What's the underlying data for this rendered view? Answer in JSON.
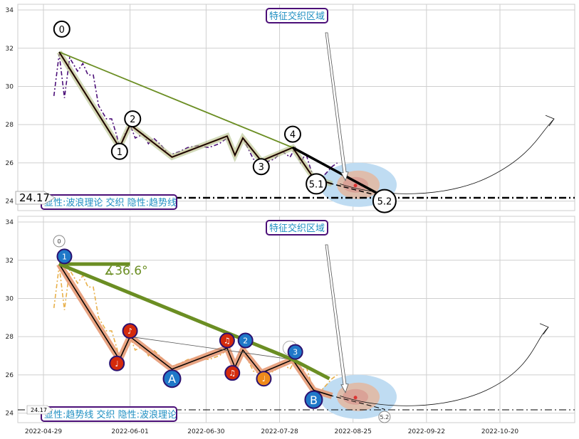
{
  "chart_data": [
    {
      "type": "line",
      "panel": "top",
      "ylim": [
        23.5,
        34.3
      ],
      "y_ticks": [
        24,
        26,
        28,
        30,
        32,
        34
      ],
      "grid": true,
      "title_box": "特征交织区域",
      "caption": "显性:波浪理论 交织 隐性:趋势线",
      "hline_label": "24.17",
      "hline_value": 24.17,
      "series": [
        {
          "style": "dashdot",
          "color": "#4b0f78",
          "points": [
            [
              "2022-05-03",
              29.5
            ],
            [
              "2022-05-05",
              31.7
            ],
            [
              "2022-05-07",
              29.4
            ],
            [
              "2022-05-09",
              31.5
            ],
            [
              "2022-05-12",
              30.8
            ],
            [
              "2022-05-14",
              31.2
            ],
            [
              "2022-05-16",
              30.6
            ],
            [
              "2022-05-18",
              30.6
            ],
            [
              "2022-05-20",
              29.0
            ],
            [
              "2022-05-23",
              28.3
            ],
            [
              "2022-05-25",
              28.3
            ],
            [
              "2022-05-27",
              27.4
            ],
            [
              "2022-05-28",
              26.8
            ],
            [
              "2022-05-30",
              27.5
            ],
            [
              "2022-06-01",
              28.0
            ],
            [
              "2022-06-03",
              27.3
            ],
            [
              "2022-06-06",
              27.5
            ],
            [
              "2022-06-08",
              27.0
            ],
            [
              "2022-06-10",
              27.3
            ],
            [
              "2022-06-13",
              26.9
            ],
            [
              "2022-06-16",
              26.4
            ],
            [
              "2022-06-20",
              26.6
            ],
            [
              "2022-06-23",
              26.8
            ],
            [
              "2022-06-27",
              26.9
            ],
            [
              "2022-07-01",
              26.8
            ],
            [
              "2022-07-05",
              27.0
            ],
            [
              "2022-07-08",
              27.3
            ],
            [
              "2022-07-11",
              26.4
            ],
            [
              "2022-07-14",
              27.3
            ],
            [
              "2022-07-18",
              26.2
            ],
            [
              "2022-07-22",
              26.0
            ],
            [
              "2022-07-26",
              26.2
            ],
            [
              "2022-07-29",
              26.6
            ],
            [
              "2022-08-01",
              26.3
            ],
            [
              "2022-08-03",
              26.8
            ],
            [
              "2022-08-05",
              26.0
            ],
            [
              "2022-08-07",
              26.5
            ],
            [
              "2022-08-09",
              25.6
            ],
            [
              "2022-08-11",
              25.0
            ],
            [
              "2022-08-13",
              25.2
            ],
            [
              "2022-08-15",
              25.5
            ],
            [
              "2022-08-17",
              25.8
            ],
            [
              "2022-08-19",
              26.0
            ]
          ]
        },
        {
          "style": "wave",
          "color": "#000000",
          "points": [
            [
              "2022-05-05",
              31.8
            ],
            [
              "2022-05-28",
              26.8
            ],
            [
              "2022-06-01",
              28.0
            ],
            [
              "2022-06-17",
              26.3
            ],
            [
              "2022-07-08",
              27.4
            ],
            [
              "2022-07-11",
              26.4
            ],
            [
              "2022-07-14",
              27.3
            ],
            [
              "2022-07-21",
              26.1
            ],
            [
              "2022-08-02",
              26.8
            ],
            [
              "2022-08-10",
              25.2
            ],
            [
              "2022-08-17",
              24.9
            ],
            [
              "2022-09-06",
              24.2
            ]
          ]
        },
        {
          "style": "trend",
          "color": "#6b8e23",
          "points": [
            [
              "2022-05-05",
              31.8
            ],
            [
              "2022-08-02",
              26.8
            ],
            [
              "2022-09-06",
              24.2
            ]
          ]
        }
      ],
      "wave_labels": [
        {
          "label": "0",
          "date": "2022-05-06",
          "value": 33.0
        },
        {
          "label": "1",
          "date": "2022-05-28",
          "value": 26.6
        },
        {
          "label": "2",
          "date": "2022-06-02",
          "value": 28.3
        },
        {
          "label": "3",
          "date": "2022-07-21",
          "value": 25.8
        },
        {
          "label": "4",
          "date": "2022-08-02",
          "value": 27.5
        },
        {
          "label": "5.1",
          "date": "2022-08-11",
          "value": 24.9
        },
        {
          "label": "5.2",
          "date": "2022-09-06",
          "value": 24.0
        }
      ]
    },
    {
      "type": "line",
      "panel": "bottom",
      "ylim": [
        23.5,
        34.3
      ],
      "y_ticks": [
        24,
        26,
        28,
        30,
        32,
        34
      ],
      "grid": true,
      "title_box": "特征交织区域",
      "caption": "显性:趋势线 交织 隐性:波浪理论",
      "hline_label": "24.17",
      "hline_value": 24.17,
      "angle_label": "∡36.6°",
      "x_ticks": [
        "2022-04-29",
        "2022-06-01",
        "2022-06-30",
        "2022-07-28",
        "2022-08-25",
        "2022-09-22",
        "2022-10-20"
      ],
      "series": [
        {
          "style": "dashdot",
          "color": "#e8b04a",
          "points": [
            [
              "2022-05-03",
              29.5
            ],
            [
              "2022-05-05",
              31.7
            ],
            [
              "2022-05-07",
              29.4
            ],
            [
              "2022-05-09",
              31.5
            ],
            [
              "2022-05-12",
              30.8
            ],
            [
              "2022-05-14",
              31.2
            ],
            [
              "2022-05-16",
              30.6
            ],
            [
              "2022-05-18",
              30.6
            ],
            [
              "2022-05-20",
              29.0
            ],
            [
              "2022-05-23",
              28.3
            ],
            [
              "2022-05-25",
              28.3
            ],
            [
              "2022-05-27",
              27.4
            ],
            [
              "2022-05-28",
              26.8
            ],
            [
              "2022-05-30",
              27.5
            ],
            [
              "2022-06-01",
              28.0
            ],
            [
              "2022-06-03",
              27.3
            ],
            [
              "2022-06-06",
              27.5
            ],
            [
              "2022-06-08",
              27.0
            ],
            [
              "2022-06-10",
              27.3
            ],
            [
              "2022-06-13",
              26.9
            ],
            [
              "2022-06-16",
              26.4
            ],
            [
              "2022-06-20",
              26.6
            ],
            [
              "2022-06-23",
              26.8
            ],
            [
              "2022-06-27",
              26.9
            ],
            [
              "2022-07-01",
              26.8
            ],
            [
              "2022-07-05",
              27.0
            ],
            [
              "2022-07-08",
              27.3
            ],
            [
              "2022-07-11",
              26.4
            ],
            [
              "2022-07-14",
              27.3
            ],
            [
              "2022-07-18",
              26.2
            ],
            [
              "2022-07-22",
              26.0
            ],
            [
              "2022-07-26",
              26.2
            ],
            [
              "2022-07-29",
              26.6
            ],
            [
              "2022-08-01",
              26.3
            ],
            [
              "2022-08-03",
              26.8
            ],
            [
              "2022-08-05",
              26.0
            ],
            [
              "2022-08-07",
              26.5
            ],
            [
              "2022-08-09",
              25.6
            ],
            [
              "2022-08-11",
              25.0
            ],
            [
              "2022-08-13",
              25.2
            ],
            [
              "2022-08-15",
              25.5
            ],
            [
              "2022-08-17",
              25.8
            ],
            [
              "2022-08-19",
              26.0
            ]
          ]
        },
        {
          "style": "wave",
          "color": "#000000",
          "points": [
            [
              "2022-05-05",
              31.8
            ],
            [
              "2022-05-28",
              26.8
            ],
            [
              "2022-06-01",
              28.0
            ],
            [
              "2022-06-17",
              26.3
            ],
            [
              "2022-07-08",
              27.4
            ],
            [
              "2022-07-11",
              26.4
            ],
            [
              "2022-07-14",
              27.3
            ],
            [
              "2022-07-21",
              26.1
            ],
            [
              "2022-08-02",
              26.8
            ],
            [
              "2022-08-10",
              25.2
            ],
            [
              "2022-08-17",
              24.9
            ],
            [
              "2022-09-06",
              24.2
            ]
          ]
        },
        {
          "style": "trend",
          "color": "#6b8e23",
          "points": [
            [
              "2022-05-05",
              31.8
            ],
            [
              "2022-08-02",
              26.8
            ],
            [
              "2022-08-16",
              25.8
            ]
          ]
        }
      ],
      "wave_labels": [
        {
          "label": "0",
          "date": "2022-05-05",
          "value": 33.0
        },
        {
          "label": "5.2",
          "date": "2022-09-06",
          "value": 23.8
        }
      ],
      "badges": [
        {
          "label": "1",
          "date": "2022-05-07",
          "value": 32.2,
          "kind": "blue"
        },
        {
          "label": "♩",
          "date": "2022-05-27",
          "value": 26.6,
          "kind": "red"
        },
        {
          "label": "♪",
          "date": "2022-06-01",
          "value": 28.3,
          "kind": "red"
        },
        {
          "label": "A",
          "date": "2022-06-17",
          "value": 25.8,
          "kind": "blue"
        },
        {
          "label": "♫",
          "date": "2022-07-08",
          "value": 27.8,
          "kind": "red"
        },
        {
          "label": "♫",
          "date": "2022-07-10",
          "value": 26.1,
          "kind": "red"
        },
        {
          "label": "2",
          "date": "2022-07-15",
          "value": 27.8,
          "kind": "blue"
        },
        {
          "label": "♩",
          "date": "2022-07-22",
          "value": 25.8,
          "kind": "orange"
        },
        {
          "label": "4",
          "date": "2022-08-01",
          "value": 27.4,
          "kind": "ghost"
        },
        {
          "label": "3",
          "date": "2022-08-03",
          "value": 27.2,
          "kind": "blue"
        },
        {
          "label": "B",
          "date": "2022-08-10",
          "value": 24.7,
          "kind": "blue"
        }
      ]
    }
  ]
}
